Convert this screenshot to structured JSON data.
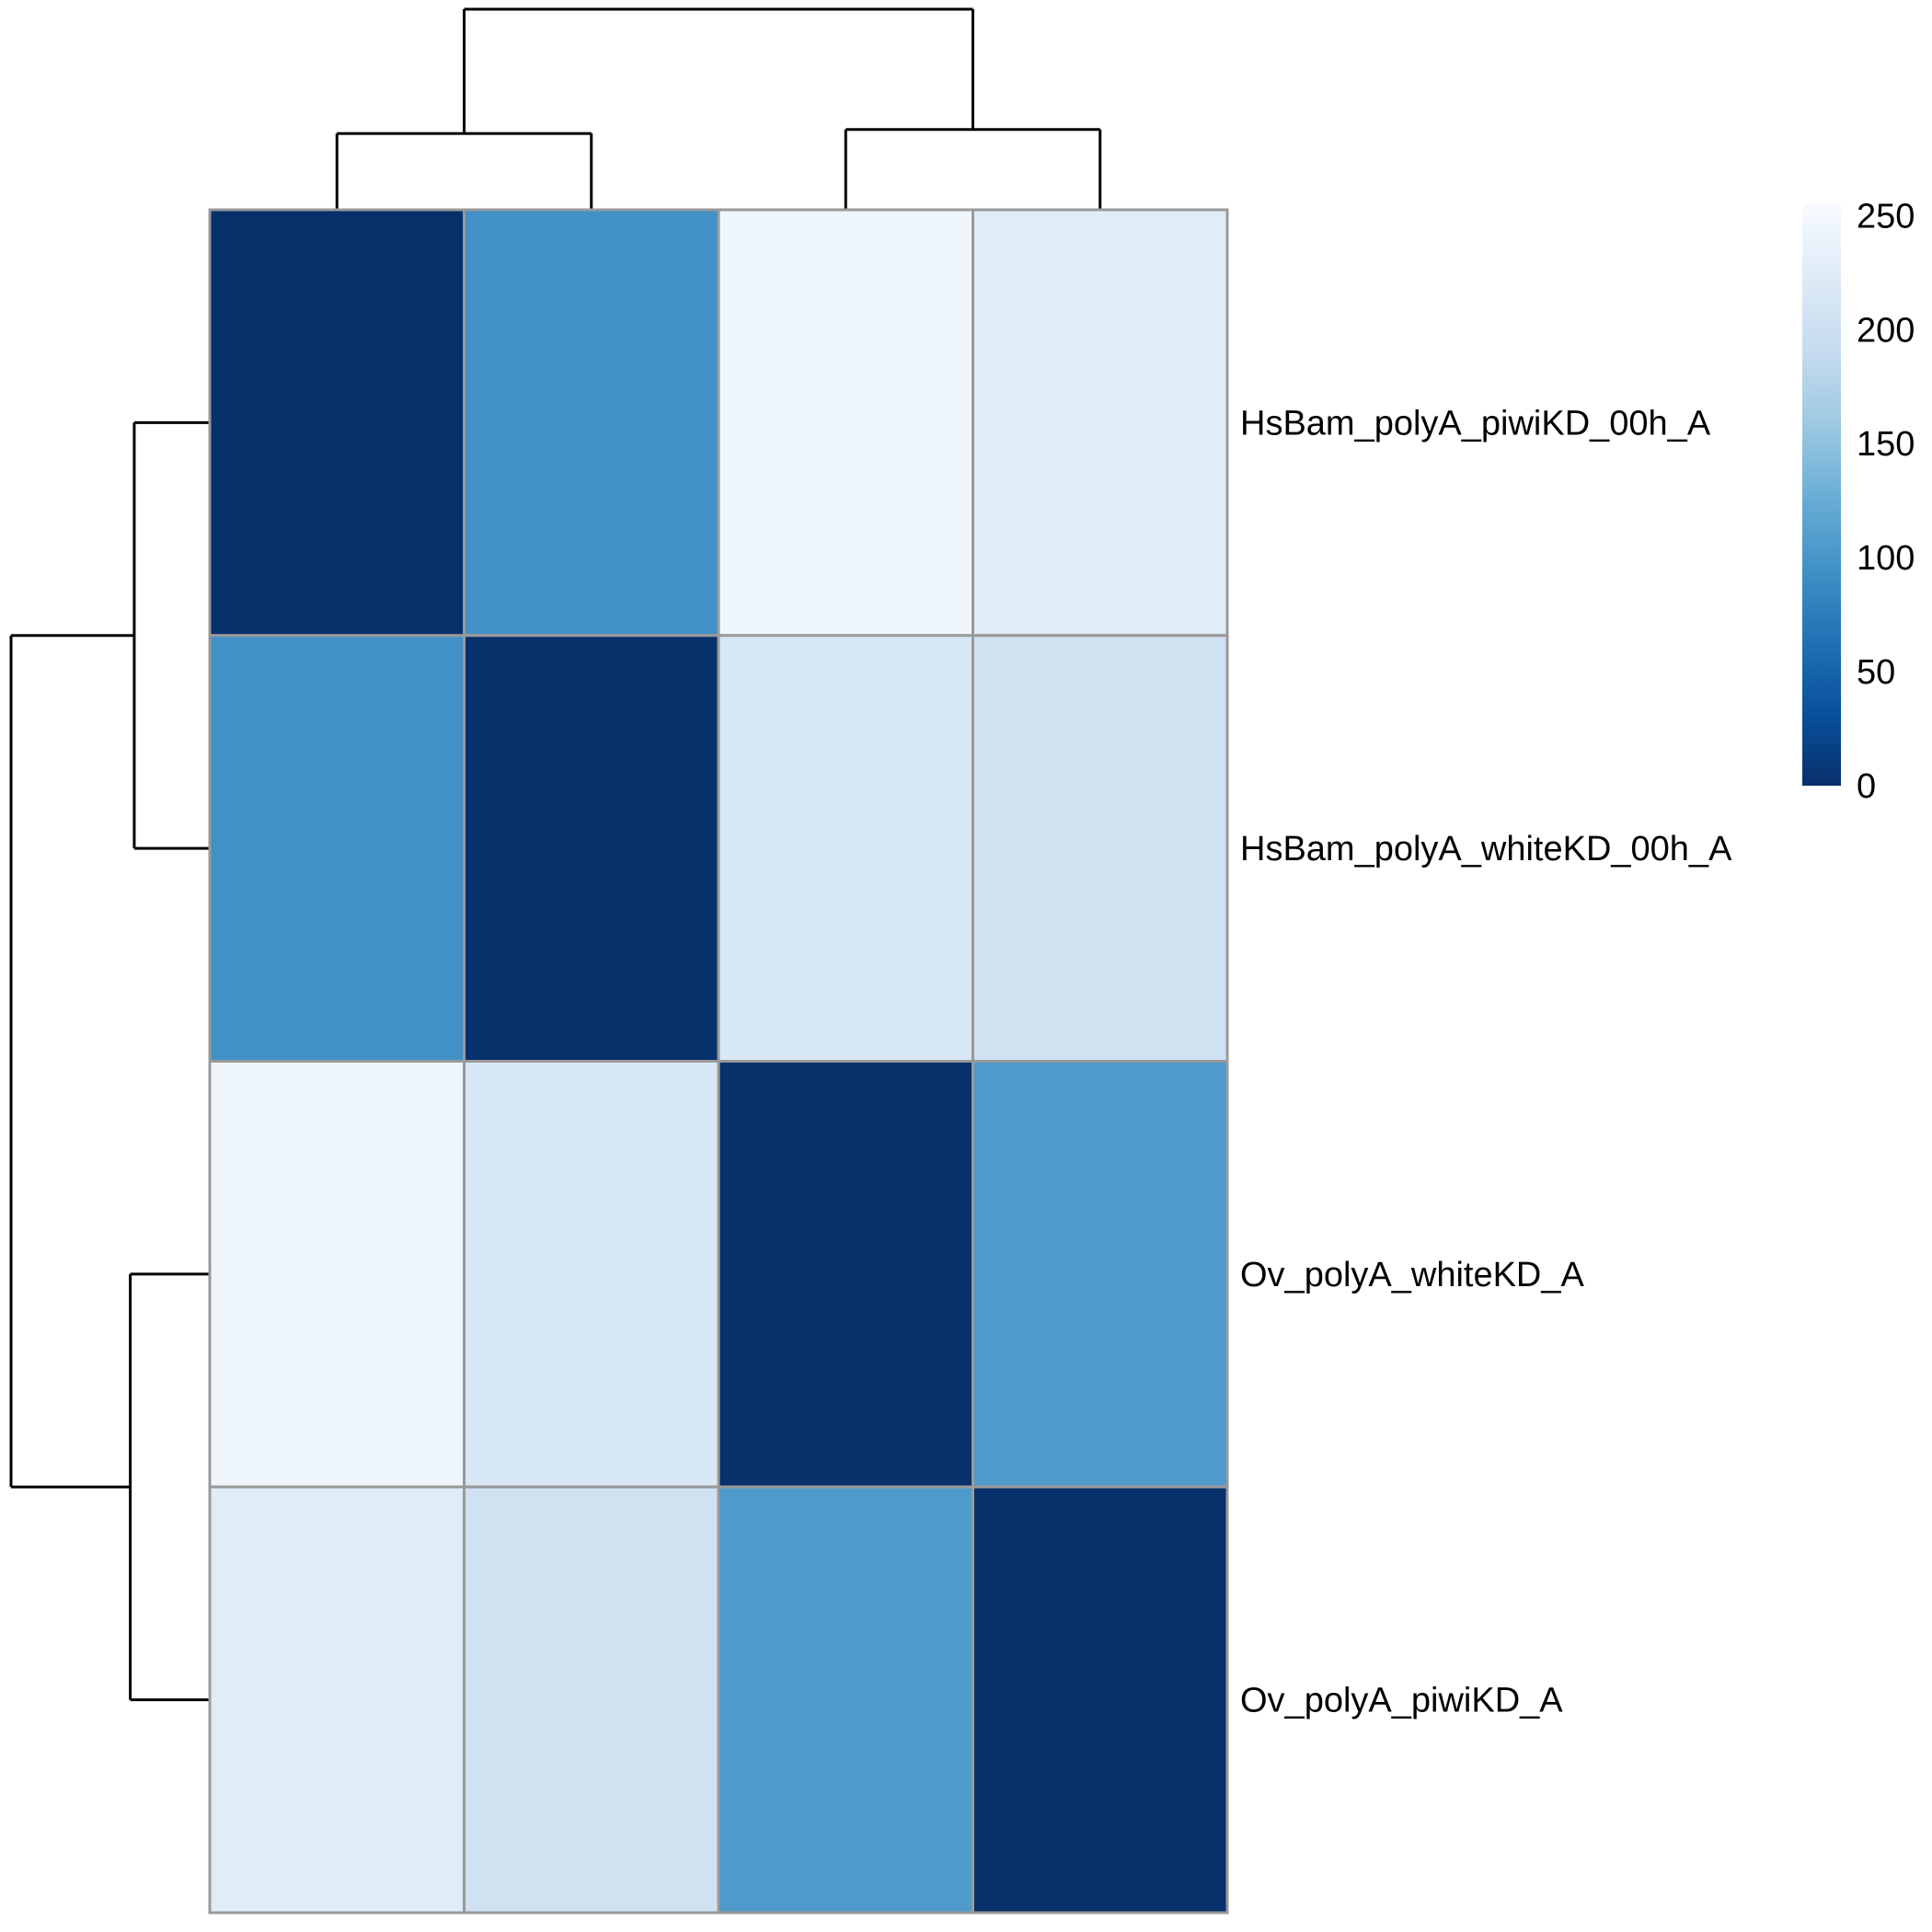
{
  "chart_data": {
    "type": "heatmap",
    "title": "",
    "row_labels": [
      "HsBam_polyA_piwiKD_00h_A",
      "HsBam_polyA_whiteKD_00h_A",
      "Ov_polyA_whiteKD_A",
      "Ov_polyA_piwiKD_A"
    ],
    "col_labels": [
      "",
      "",
      "",
      ""
    ],
    "values": [
      [
        0,
        95,
        245,
        226
      ],
      [
        95,
        0,
        215,
        205
      ],
      [
        245,
        215,
        0,
        105
      ],
      [
        226,
        205,
        105,
        0
      ]
    ],
    "color_scale": {
      "min": 0,
      "max": 255,
      "palette": [
        "#08306B",
        "#08519C",
        "#2171B5",
        "#4292C6",
        "#6BAED6",
        "#9ECAE1",
        "#C6DBEF",
        "#DEEBF7",
        "#F7FBFF"
      ],
      "legend_ticks": [
        "0",
        "50",
        "100",
        "150",
        "200",
        "250"
      ],
      "legend_tick_values": [
        0,
        50,
        100,
        150,
        200,
        250
      ]
    },
    "row_dendrogram": {
      "merges": [
        [
          0,
          1
        ],
        [
          2,
          3
        ],
        [
          "c0",
          "c1"
        ]
      ],
      "heights": [
        0.38,
        0.4,
        1.0
      ]
    },
    "col_dendrogram": {
      "merges": [
        [
          0,
          1
        ],
        [
          2,
          3
        ],
        [
          "c0",
          "c1"
        ]
      ],
      "heights": [
        0.38,
        0.4,
        1.0
      ]
    },
    "grid_color": "#999999",
    "legend_position": "right"
  }
}
